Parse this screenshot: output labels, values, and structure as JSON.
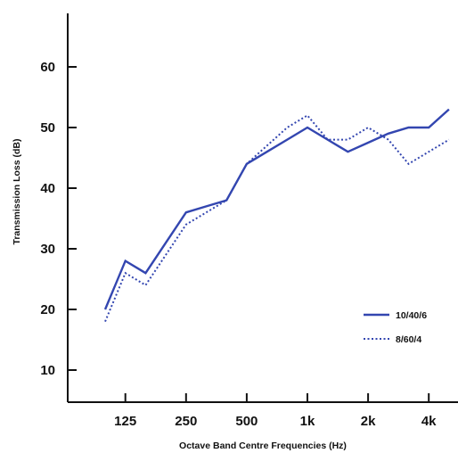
{
  "chart_data": {
    "type": "line",
    "title": "",
    "xlabel": "Octave Band Centre Frequencies (Hz)",
    "ylabel": "Transmission Loss (dB)",
    "x_ticks": [
      "125",
      "250",
      "500",
      "1k",
      "2k",
      "4k"
    ],
    "y_ticks": [
      "10",
      "20",
      "30",
      "40",
      "50",
      "60"
    ],
    "ylim": [
      5,
      65
    ],
    "x_scale": "log (one-third octave bands)",
    "grid": false,
    "legend_position": "lower-right",
    "series": [
      {
        "name": "10/40/6",
        "style": "solid",
        "color": "#3346b0",
        "x": [
          "100",
          "125",
          "160",
          "200",
          "250",
          "315",
          "400",
          "500",
          "630",
          "800",
          "1k",
          "1.25k",
          "1.6k",
          "2k",
          "2.5k",
          "3.15k",
          "4k",
          "5k"
        ],
        "values": [
          20,
          28,
          26,
          31,
          36,
          37,
          38,
          44,
          46,
          48,
          50,
          48,
          46,
          47.5,
          49,
          50,
          50,
          53
        ]
      },
      {
        "name": "8/60/4",
        "style": "dotted",
        "color": "#3346b0",
        "x": [
          "100",
          "125",
          "160",
          "200",
          "250",
          "315",
          "400",
          "500",
          "630",
          "800",
          "1k",
          "1.25k",
          "1.6k",
          "2k",
          "2.5k",
          "3.15k",
          "4k",
          "5k"
        ],
        "values": [
          18,
          26,
          24,
          29,
          34,
          36,
          38,
          44,
          47,
          50,
          52,
          48,
          48,
          50,
          48,
          44,
          46,
          48
        ]
      }
    ]
  }
}
